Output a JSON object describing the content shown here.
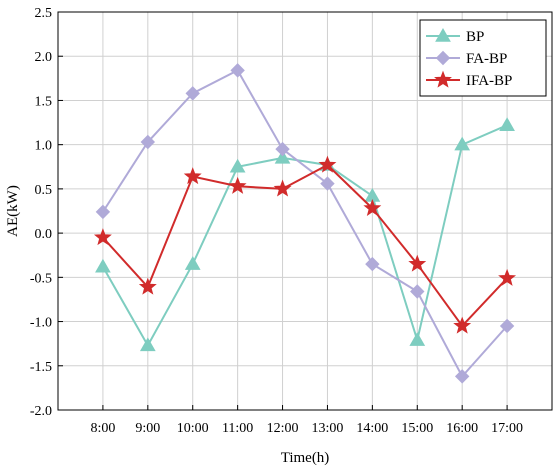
{
  "chart_data": {
    "type": "line",
    "xlabel": "Time(h)",
    "ylabel": "AE(kW)",
    "categories": [
      "8:00",
      "9:00",
      "10:00",
      "11:00",
      "12:00",
      "13:00",
      "14:00",
      "15:00",
      "16:00",
      "17:00"
    ],
    "ylim": [
      -2.0,
      2.5
    ],
    "yticks": [
      "-2.0",
      "-1.5",
      "-1.0",
      "-0.5",
      "0.0",
      "0.5",
      "1.0",
      "1.5",
      "2.0",
      "2.5"
    ],
    "grid": true,
    "legend_position": "top-right",
    "series": [
      {
        "name": "BP",
        "color": "#7ecdc0",
        "marker": "triangle",
        "values": [
          -0.38,
          -1.27,
          -0.35,
          0.75,
          0.85,
          0.77,
          0.42,
          -1.21,
          1.0,
          1.22
        ]
      },
      {
        "name": "FA-BP",
        "color": "#b0aad8",
        "marker": "diamond",
        "values": [
          0.24,
          1.03,
          1.58,
          1.84,
          0.95,
          0.56,
          -0.35,
          -0.66,
          -1.62,
          -1.05
        ]
      },
      {
        "name": "IFA-BP",
        "color": "#d12b2b",
        "marker": "star",
        "values": [
          -0.05,
          -0.61,
          0.64,
          0.53,
          0.5,
          0.77,
          0.28,
          -0.35,
          -1.05,
          -0.51
        ]
      }
    ]
  }
}
